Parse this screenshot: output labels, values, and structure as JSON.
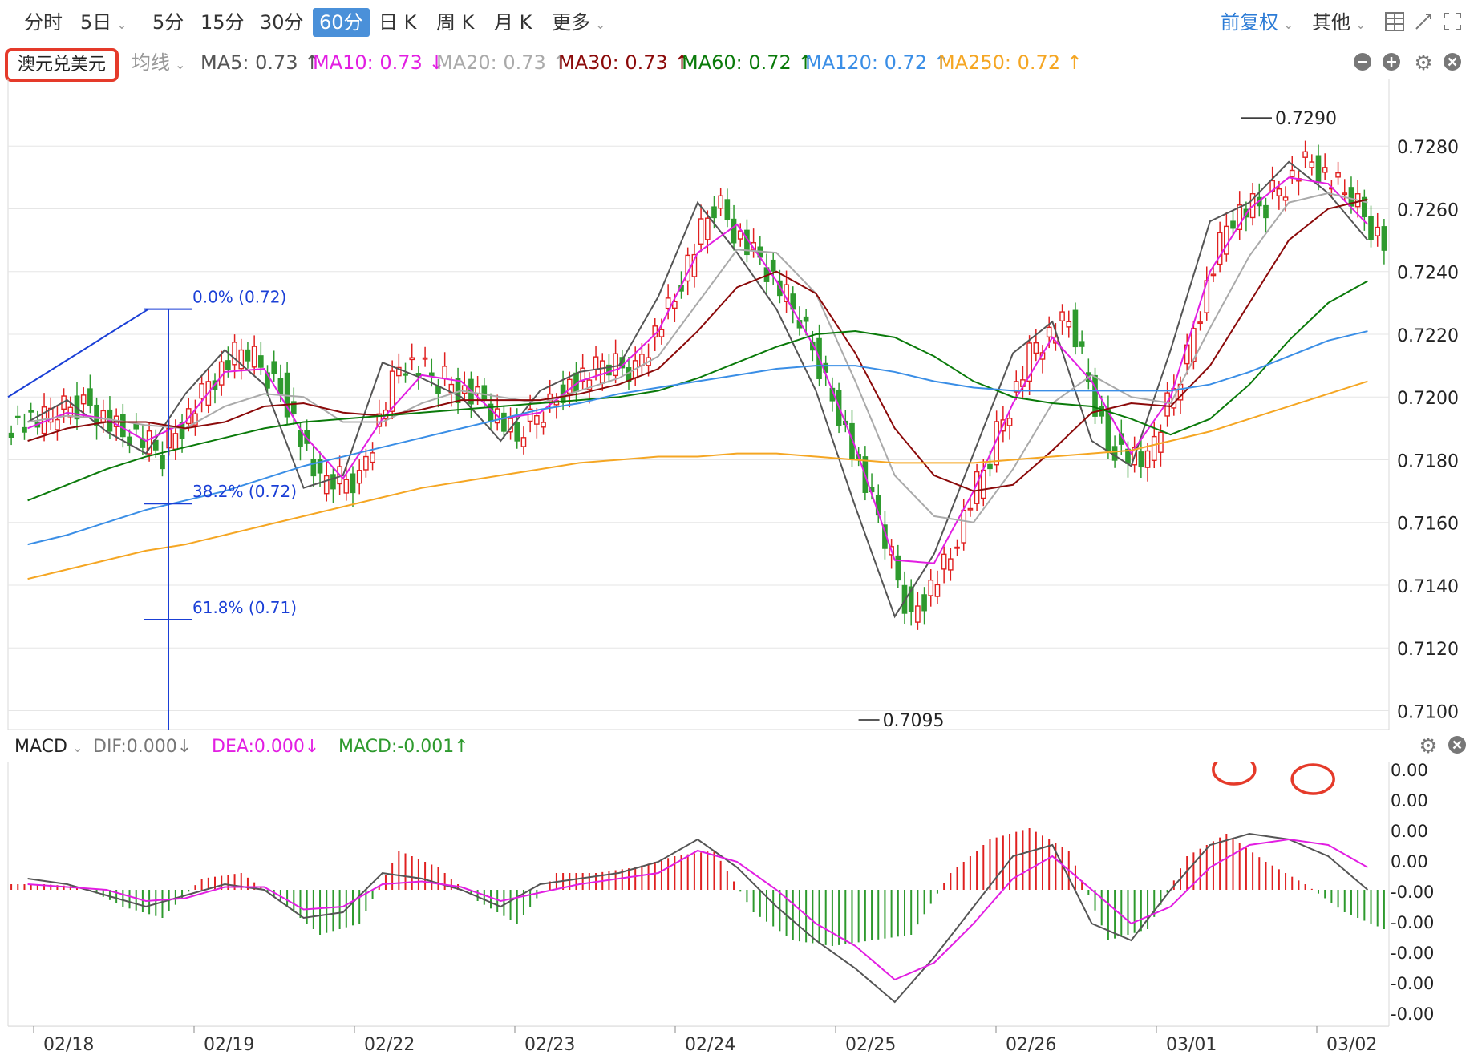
{
  "toolbar": {
    "tabs": [
      {
        "label": "分时",
        "caret": false,
        "active": false
      },
      {
        "label": "5日",
        "caret": true,
        "active": false
      },
      {
        "label": "5分",
        "caret": false,
        "active": false
      },
      {
        "label": "15分",
        "caret": false,
        "active": false
      },
      {
        "label": "30分",
        "caret": false,
        "active": false
      },
      {
        "label": "60分",
        "caret": false,
        "active": true
      },
      {
        "label": "日 K",
        "caret": false,
        "active": false
      },
      {
        "label": "周 K",
        "caret": false,
        "active": false
      },
      {
        "label": "月 K",
        "caret": false,
        "active": false
      },
      {
        "label": "更多",
        "caret": true,
        "active": false
      }
    ],
    "adjust_label": "前复权",
    "other_label": "其他",
    "caret": "⌄",
    "icons": [
      "grid-icon",
      "crosshair-icon",
      "fullscreen-icon"
    ]
  },
  "symbol": "澳元兑美元",
  "indicator_label": "均线",
  "ma_legend": [
    {
      "label": "MA5: 0.73 ↑",
      "color": "#555555"
    },
    {
      "label": "MA10: 0.73 ↓",
      "color": "#e21ee2"
    },
    {
      "label": "MA20: 0.73 ↑",
      "color": "#aaaaaa"
    },
    {
      "label": "MA30: 0.73 ↑",
      "color": "#8b0a0a"
    },
    {
      "label": "MA60: 0.72 ↑",
      "color": "#0a7a0a"
    },
    {
      "label": "MA120: 0.72 ↑",
      "color": "#3a8ee6"
    },
    {
      "label": "MA250: 0.72 ↑",
      "color": "#f5a623"
    }
  ],
  "macd_legend": {
    "name": "MACD",
    "dif": "DIF:0.000↓",
    "dea": "DEA:0.000↓",
    "macd": "MACD:-0.001↑"
  },
  "colors": {
    "up": "#e02020",
    "down": "#2e9a2e",
    "fib": "#1a3fd6",
    "grid": "#e6e6e6",
    "annotation": "#e53a2a"
  },
  "chart_data": [
    {
      "type": "candlestick",
      "title": "澳元兑美元",
      "ylim": [
        0.7095,
        0.73
      ],
      "price_ticks": [
        "0.7280",
        "0.7260",
        "0.7240",
        "0.7220",
        "0.7200",
        "0.7180",
        "0.7160",
        "0.7140",
        "0.7120",
        "0.7100"
      ],
      "x_ticks": [
        "02/18",
        "02/19",
        "02/22",
        "02/23",
        "02/24",
        "02/25",
        "02/26",
        "03/01",
        "03/02"
      ],
      "max_label": "0.7290",
      "min_label": "0.7095",
      "fibonacci": [
        {
          "label": "0.0% (0.72)",
          "price": 0.7228
        },
        {
          "label": "38.2% (0.72)",
          "price": 0.7166
        },
        {
          "label": "61.8% (0.71)",
          "price": 0.7129
        }
      ],
      "series": [
        {
          "name": "MA5",
          "values": [
            0.7192,
            0.7199,
            0.7189,
            0.7182,
            0.7201,
            0.7215,
            0.7204,
            0.7171,
            0.7175,
            0.7211,
            0.7206,
            0.72,
            0.7186,
            0.7202,
            0.7208,
            0.721,
            0.7232,
            0.7262,
            0.7246,
            0.7228,
            0.7202,
            0.7165,
            0.713,
            0.715,
            0.7182,
            0.7214,
            0.7224,
            0.7186,
            0.7178,
            0.7215,
            0.7256,
            0.7262,
            0.7275,
            0.7265,
            0.725
          ]
        },
        {
          "name": "MA10",
          "values": [
            0.719,
            0.7195,
            0.7193,
            0.7186,
            0.7192,
            0.7208,
            0.7209,
            0.7188,
            0.7174,
            0.7193,
            0.7207,
            0.7205,
            0.7193,
            0.7195,
            0.7205,
            0.7209,
            0.7221,
            0.7246,
            0.7255,
            0.7237,
            0.7215,
            0.7184,
            0.7148,
            0.7147,
            0.717,
            0.7198,
            0.7219,
            0.7205,
            0.7182,
            0.72,
            0.724,
            0.726,
            0.727,
            0.7268,
            0.7255
          ]
        },
        {
          "name": "MA20",
          "values": [
            0.7192,
            0.7194,
            0.7193,
            0.7191,
            0.719,
            0.7197,
            0.7201,
            0.72,
            0.7192,
            0.7192,
            0.7198,
            0.7202,
            0.72,
            0.7198,
            0.7202,
            0.7206,
            0.7213,
            0.723,
            0.7247,
            0.7246,
            0.7233,
            0.7205,
            0.7175,
            0.7162,
            0.716,
            0.7177,
            0.7198,
            0.7207,
            0.72,
            0.7198,
            0.7222,
            0.7245,
            0.7262,
            0.7265,
            0.7262
          ]
        },
        {
          "name": "MA30",
          "values": [
            0.7186,
            0.719,
            0.7192,
            0.7192,
            0.719,
            0.7192,
            0.7197,
            0.7198,
            0.7195,
            0.7194,
            0.7196,
            0.7199,
            0.7199,
            0.7199,
            0.7201,
            0.7204,
            0.7209,
            0.7221,
            0.7235,
            0.724,
            0.7233,
            0.7214,
            0.719,
            0.7175,
            0.717,
            0.7172,
            0.7183,
            0.7195,
            0.7198,
            0.7197,
            0.721,
            0.723,
            0.725,
            0.726,
            0.7263
          ]
        },
        {
          "name": "MA60",
          "values": [
            0.7167,
            0.7172,
            0.7177,
            0.7181,
            0.7184,
            0.7187,
            0.719,
            0.7192,
            0.7193,
            0.7194,
            0.7195,
            0.7196,
            0.7197,
            0.7198,
            0.7199,
            0.72,
            0.7202,
            0.7206,
            0.7211,
            0.7216,
            0.722,
            0.7221,
            0.7219,
            0.7213,
            0.7205,
            0.72,
            0.7198,
            0.7197,
            0.7193,
            0.7188,
            0.7193,
            0.7204,
            0.7218,
            0.723,
            0.7237
          ]
        },
        {
          "name": "MA120",
          "values": [
            0.7153,
            0.7156,
            0.716,
            0.7164,
            0.7167,
            0.717,
            0.7174,
            0.7178,
            0.7181,
            0.7184,
            0.7187,
            0.719,
            0.7193,
            0.7196,
            0.7198,
            0.7201,
            0.7203,
            0.7205,
            0.7207,
            0.7209,
            0.721,
            0.721,
            0.7208,
            0.7205,
            0.7203,
            0.7202,
            0.7202,
            0.7202,
            0.7202,
            0.7202,
            0.7204,
            0.7208,
            0.7213,
            0.7218,
            0.7221
          ]
        },
        {
          "name": "MA250",
          "values": [
            0.7142,
            0.7145,
            0.7148,
            0.7151,
            0.7153,
            0.7156,
            0.7159,
            0.7162,
            0.7165,
            0.7168,
            0.7171,
            0.7173,
            0.7175,
            0.7177,
            0.7179,
            0.718,
            0.7181,
            0.7181,
            0.7182,
            0.7182,
            0.7181,
            0.718,
            0.7179,
            0.7179,
            0.7179,
            0.718,
            0.7181,
            0.7182,
            0.7183,
            0.7186,
            0.7189,
            0.7193,
            0.7197,
            0.7201,
            0.7205
          ]
        }
      ]
    },
    {
      "type": "macd",
      "dif": [
        0.2,
        0.1,
        -0.1,
        -0.3,
        -0.1,
        0.1,
        0.0,
        -0.5,
        -0.4,
        0.3,
        0.2,
        0.0,
        -0.3,
        0.1,
        0.2,
        0.3,
        0.5,
        0.9,
        0.4,
        -0.3,
        -0.9,
        -1.4,
        -2.0,
        -1.2,
        -0.3,
        0.6,
        0.8,
        -0.6,
        -0.9,
        0.0,
        0.8,
        1.0,
        0.9,
        0.6,
        0.0
      ],
      "dea": [
        0.1,
        0.05,
        0.0,
        -0.2,
        -0.15,
        0.05,
        0.05,
        -0.35,
        -0.3,
        0.1,
        0.15,
        0.05,
        -0.2,
        -0.05,
        0.1,
        0.2,
        0.3,
        0.7,
        0.5,
        0.0,
        -0.6,
        -1.0,
        -1.6,
        -1.3,
        -0.6,
        0.2,
        0.6,
        0.0,
        -0.6,
        -0.3,
        0.4,
        0.8,
        0.9,
        0.8,
        0.4
      ],
      "hist": [
        0.1,
        0.05,
        -0.3,
        -0.5,
        0.2,
        0.3,
        -0.2,
        -0.8,
        -0.6,
        0.7,
        0.4,
        -0.2,
        -0.6,
        0.3,
        0.3,
        0.4,
        0.6,
        0.7,
        -0.4,
        -0.9,
        -1.0,
        -0.9,
        -0.8,
        0.3,
        0.9,
        1.1,
        0.7,
        -0.9,
        -0.7,
        0.6,
        1.0,
        0.5,
        0.1,
        -0.4,
        -0.7
      ],
      "ticks": [
        "0.00",
        "0.00",
        "0.00",
        "0.00",
        "-0.00",
        "-0.00",
        "-0.00",
        "-0.00",
        "-0.00"
      ]
    }
  ]
}
